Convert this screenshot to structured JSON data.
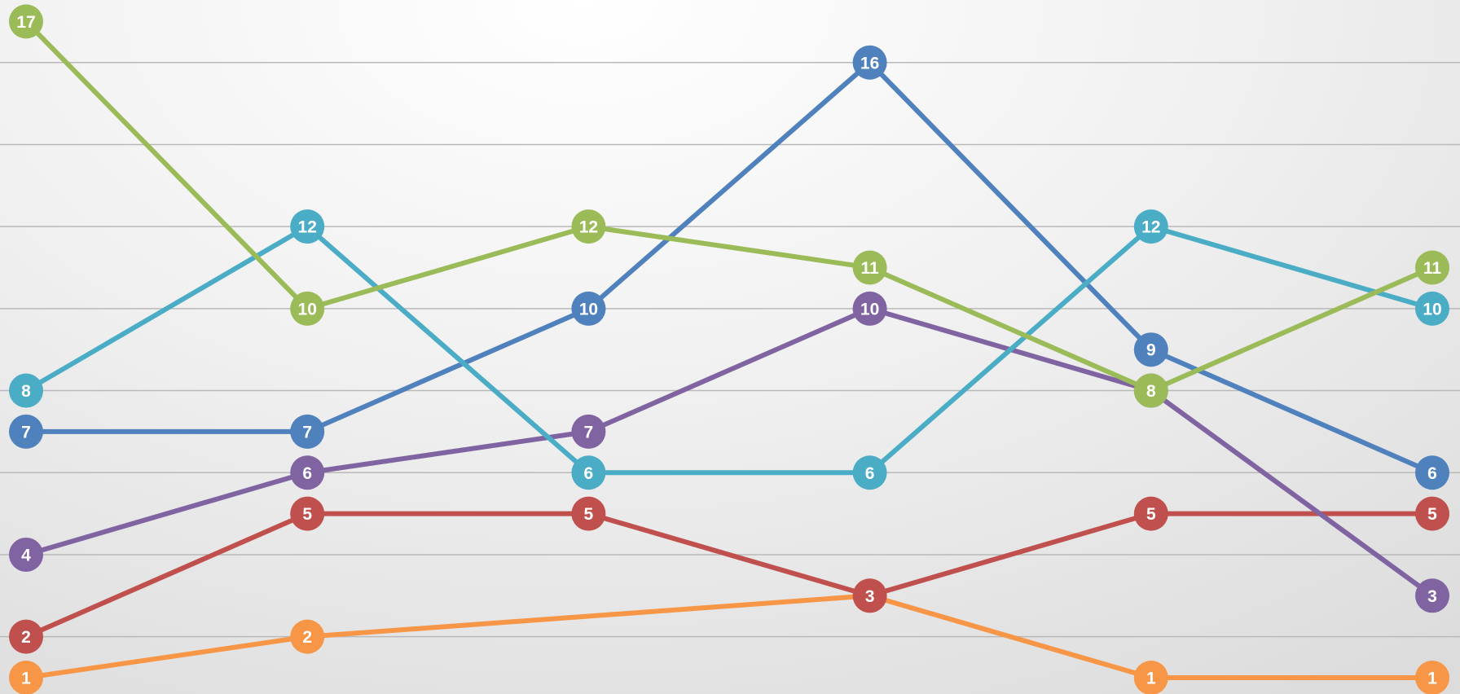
{
  "chart_data": {
    "type": "line",
    "title": "",
    "xlabel": "",
    "ylabel": "",
    "x": [
      1,
      2,
      3,
      4,
      5,
      6
    ],
    "ylim": [
      0,
      17
    ],
    "grid": true,
    "gridlines": [
      2,
      4,
      6,
      8,
      10,
      12,
      14,
      16
    ],
    "legend": "none",
    "data_labels": true,
    "series": [
      {
        "color": "#F79646",
        "values": [
          1,
          2,
          null,
          3,
          1,
          1
        ]
      },
      {
        "color": "#C0504D",
        "values": [
          2,
          5,
          5,
          3,
          5,
          5
        ]
      },
      {
        "color": "#8064A2",
        "values": [
          4,
          6,
          7,
          10,
          8,
          3
        ]
      },
      {
        "color": "#4F81BD",
        "values": [
          7,
          7,
          10,
          16,
          9,
          6
        ]
      },
      {
        "color": "#4BACC6",
        "values": [
          8,
          12,
          6,
          6,
          12,
          10
        ]
      },
      {
        "color": "#9BBB59",
        "values": [
          17,
          10,
          12,
          11,
          8,
          11
        ]
      }
    ]
  }
}
